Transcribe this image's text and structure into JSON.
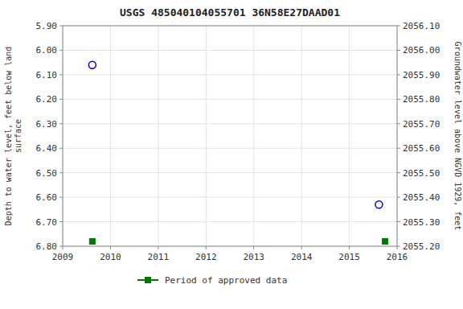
{
  "chart_data": {
    "type": "scatter",
    "title": "USGS 485040104055701 36N58E27DAAD01",
    "y_label": "Depth to water level, feet below land\n surface",
    "y2_label": "Groundwater level above NGVD 1929, feet",
    "xlim": [
      2009,
      2016
    ],
    "xticks": [
      2009,
      2010,
      2011,
      2012,
      2013,
      2014,
      2015,
      2016
    ],
    "ylim": [
      6.8,
      5.9
    ],
    "yticks": [
      {
        "value": 5.9,
        "label": "5.90"
      },
      {
        "value": 6.0,
        "label": "6.00"
      },
      {
        "value": 6.1,
        "label": "6.10"
      },
      {
        "value": 6.2,
        "label": "6.20"
      },
      {
        "value": 6.3,
        "label": "6.30"
      },
      {
        "value": 6.4,
        "label": "6.40"
      },
      {
        "value": 6.5,
        "label": "6.50"
      },
      {
        "value": 6.6,
        "label": "6.60"
      },
      {
        "value": 6.7,
        "label": "6.70"
      },
      {
        "value": 6.8,
        "label": "6.80"
      }
    ],
    "y2lim": [
      2055.2,
      2056.1
    ],
    "y2ticks": [
      {
        "value": 2056.1,
        "label": "2056.10"
      },
      {
        "value": 2056.0,
        "label": "2056.00"
      },
      {
        "value": 2055.9,
        "label": "2055.90"
      },
      {
        "value": 2055.8,
        "label": "2055.80"
      },
      {
        "value": 2055.7,
        "label": "2055.70"
      },
      {
        "value": 2055.6,
        "label": "2055.60"
      },
      {
        "value": 2055.5,
        "label": "2055.50"
      },
      {
        "value": 2055.4,
        "label": "2055.40"
      },
      {
        "value": 2055.3,
        "label": "2055.30"
      },
      {
        "value": 2055.2,
        "label": "2055.20"
      }
    ],
    "grid": true,
    "legend": "bottom",
    "series": [
      {
        "color": "#0000cc",
        "marker": "circle",
        "x": [
          2009.62,
          2015.62
        ],
        "values": [
          6.06,
          6.63
        ]
      },
      {
        "name": "Period of approved data",
        "color": "#007700",
        "marker": "square",
        "x": [
          2009.62,
          2015.75
        ],
        "values": [
          6.78,
          6.78
        ]
      }
    ]
  }
}
